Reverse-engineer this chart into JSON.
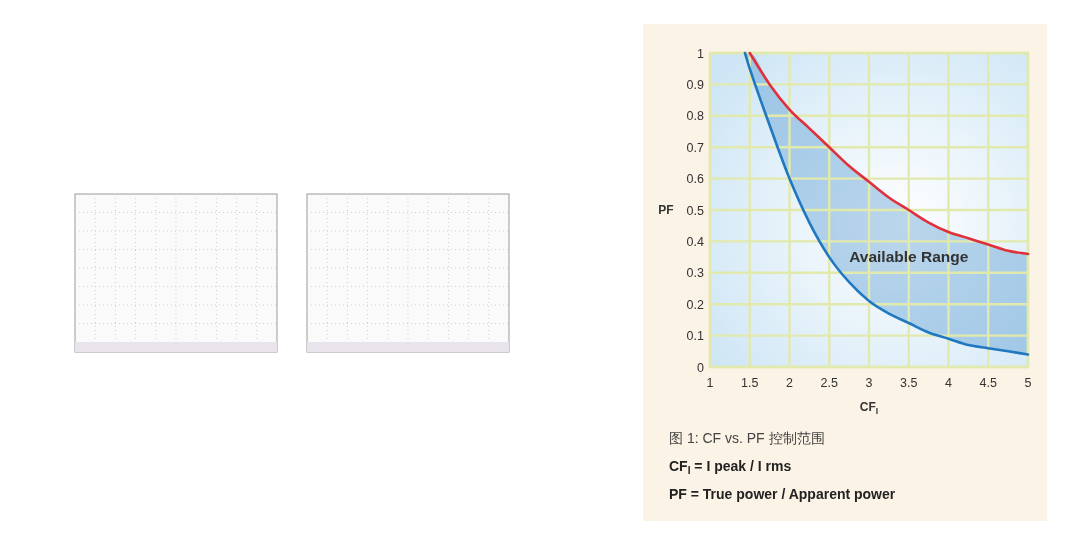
{
  "chart_data": {
    "type": "line",
    "xlabel": "CF$_{I}$",
    "ylabel": "PF",
    "xlim": [
      1,
      5
    ],
    "ylim": [
      0,
      1
    ],
    "xticks": [
      1,
      1.5,
      2,
      2.5,
      3,
      3.5,
      4,
      4.5,
      5
    ],
    "yticks": [
      0,
      0.1,
      0.2,
      0.3,
      0.4,
      0.5,
      0.6,
      0.7,
      0.8,
      0.9,
      1
    ],
    "grid": true,
    "series": [
      {
        "color": "#e0303a",
        "x": [
          1.5,
          1.75,
          2,
          2.25,
          2.5,
          2.75,
          3,
          3.25,
          3.5,
          3.75,
          4,
          4.25,
          4.5,
          4.75,
          5
        ],
        "values": [
          1,
          0.9,
          0.82,
          0.76,
          0.7,
          0.64,
          0.59,
          0.54,
          0.5,
          0.46,
          0.43,
          0.41,
          0.39,
          0.37,
          0.36
        ]
      },
      {
        "color": "#1f78c0",
        "x": [
          1.44,
          1.5,
          1.75,
          2,
          2.25,
          2.5,
          2.75,
          3,
          3.25,
          3.5,
          3.75,
          4,
          4.25,
          4.5,
          4.75,
          5
        ],
        "values": [
          1,
          0.95,
          0.77,
          0.6,
          0.46,
          0.35,
          0.27,
          0.21,
          0.17,
          0.14,
          0.11,
          0.09,
          0.07,
          0.06,
          0.05,
          0.04
        ],
        "lower": [
          1,
          0.95,
          0.77,
          0.6,
          0.46,
          0.35,
          0.27,
          0.21,
          0.17,
          0.14,
          0.11,
          0.09,
          0.07,
          0.06,
          0.05,
          0.04
        ],
        "upper": [
          1,
          1,
          0.9,
          0.82,
          0.76,
          0.7,
          0.64,
          0.59,
          0.54,
          0.5,
          0.46,
          0.43,
          0.41,
          0.39,
          0.37,
          0.36
        ]
      }
    ],
    "annotations": [
      "Available Range",
      "图 1: CF vs. PF 控制范围",
      "CF$_{I}$ = I peak / I rms",
      "PF = True power / Apparent power"
    ]
  }
}
